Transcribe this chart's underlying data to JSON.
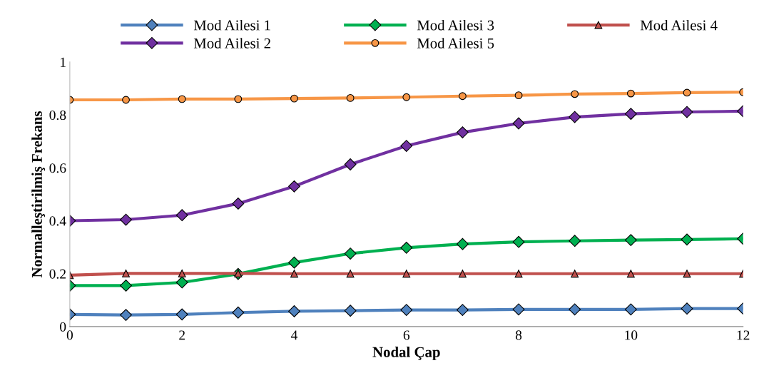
{
  "chart_data": {
    "type": "line",
    "xlabel": "Nodal Çap",
    "ylabel": "Normalleştirilmiş Frekans",
    "x": [
      0,
      1,
      2,
      3,
      4,
      5,
      6,
      7,
      8,
      9,
      10,
      11,
      12
    ],
    "series": [
      {
        "name": "Mod Ailesi 1",
        "color": "#4f81bd",
        "marker": "diamond",
        "values": [
          0.046,
          0.044,
          0.046,
          0.053,
          0.058,
          0.06,
          0.063,
          0.063,
          0.065,
          0.065,
          0.065,
          0.068,
          0.068
        ]
      },
      {
        "name": "Mod Ailesi 2",
        "color": "#7030a0",
        "marker": "diamond",
        "values": [
          0.4,
          0.404,
          0.421,
          0.465,
          0.53,
          0.613,
          0.683,
          0.734,
          0.768,
          0.792,
          0.804,
          0.811,
          0.814
        ]
      },
      {
        "name": "Mod Ailesi 3",
        "color": "#00b050",
        "marker": "diamond",
        "values": [
          0.155,
          0.155,
          0.167,
          0.199,
          0.242,
          0.276,
          0.298,
          0.312,
          0.32,
          0.324,
          0.327,
          0.329,
          0.332
        ]
      },
      {
        "name": "Mod Ailesi 5",
        "color": "#f79646",
        "marker": "circle",
        "values": [
          0.857,
          0.857,
          0.86,
          0.86,
          0.862,
          0.864,
          0.867,
          0.871,
          0.874,
          0.879,
          0.881,
          0.884,
          0.886
        ]
      },
      {
        "name": "Mod Ailesi 4",
        "color": "#c0504d",
        "marker": "triangle",
        "values": [
          0.194,
          0.201,
          0.201,
          0.201,
          0.2,
          0.2,
          0.2,
          0.2,
          0.2,
          0.2,
          0.2,
          0.2,
          0.2
        ]
      }
    ],
    "xlim": [
      0,
      12
    ],
    "xticks": [
      0,
      2,
      4,
      6,
      8,
      10,
      12
    ],
    "ylim": [
      0,
      1
    ],
    "yticks": [
      0,
      0.2,
      0.4,
      0.6,
      0.8,
      1
    ],
    "grid": false,
    "legend": "top",
    "line_style": "solid"
  }
}
